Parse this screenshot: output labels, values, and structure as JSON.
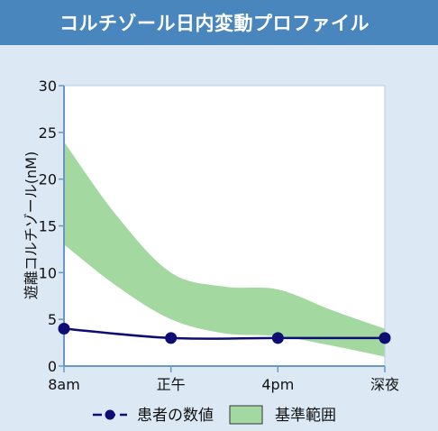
{
  "title": "コルチゾール日内変動プロファイル",
  "chart_data": {
    "type": "line",
    "ylabel": "遊離コルチゾール(nM)",
    "xlabel": "",
    "ylim": [
      0,
      30
    ],
    "yticks": [
      0,
      5,
      10,
      15,
      20,
      25,
      30
    ],
    "categories": [
      "8am",
      "正午",
      "4pm",
      "深夜"
    ],
    "grid": false,
    "legend_position": "bottom",
    "series": [
      {
        "name": "患者の数値",
        "color": "#0d0d73",
        "marker": "circle",
        "style": "solid-line",
        "x": [
          0,
          1,
          2,
          3
        ],
        "values": [
          4,
          3,
          3,
          3
        ]
      }
    ],
    "band": {
      "name": "基準範囲",
      "color": "#a3d9a0",
      "x": [
        0,
        0.5,
        1,
        1.5,
        2,
        2.5,
        3
      ],
      "upper": [
        24,
        16,
        10,
        8.5,
        8.2,
        6,
        4
      ],
      "lower": [
        13,
        8.5,
        5,
        3.5,
        3.2,
        2.2,
        1
      ]
    }
  }
}
